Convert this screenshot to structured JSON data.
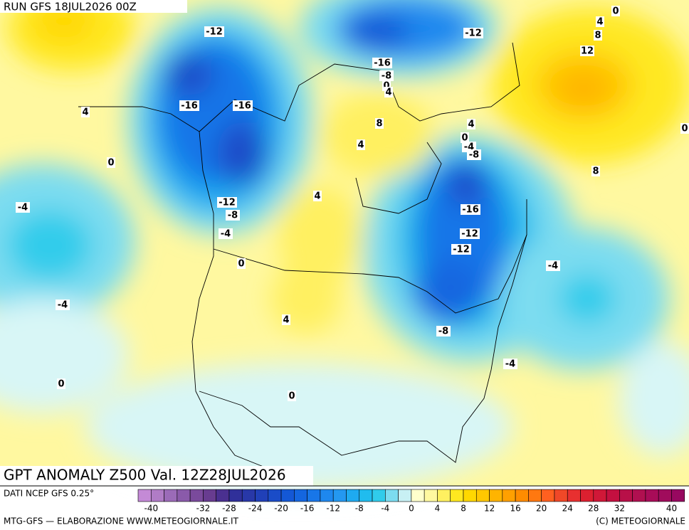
{
  "header": {
    "run": "RUN GFS 18JUL2026 00Z"
  },
  "map": {
    "title": "GPT ANOMALY Z500 Val. 12Z28JUL2026",
    "contour_labels": [
      "-12",
      "-16",
      "-16",
      "4",
      "0",
      "-4",
      "-12",
      "-8",
      "-4",
      "0",
      "4",
      "-4",
      "4",
      "0",
      "0",
      "-12",
      "4",
      "0",
      "8",
      "12",
      "-16",
      "-8",
      "0",
      "4",
      "8",
      "4",
      "4",
      "0",
      "-4",
      "-8",
      "8",
      "0",
      "-16",
      "-12",
      "-12",
      "-4",
      "-8",
      "-4"
    ]
  },
  "legend": {
    "source": "DATI NCEP GFS 0.25°",
    "ticks": [
      -40,
      -32,
      -28,
      -24,
      -20,
      -16,
      -12,
      -8,
      -4,
      0,
      4,
      8,
      12,
      16,
      20,
      24,
      28,
      32,
      40
    ],
    "colors": [
      "#c48ad6",
      "#b07cc6",
      "#9b6bb8",
      "#8a5aaa",
      "#7a4a9c",
      "#683c90",
      "#4a3090",
      "#30309a",
      "#2838a8",
      "#2040b8",
      "#1a4cc8",
      "#1458d6",
      "#1466e0",
      "#1876e8",
      "#1e88ee",
      "#2498f0",
      "#1eaaf0",
      "#20bcee",
      "#30cceb",
      "#7cdcf0",
      "#c8f0f4",
      "#ffffcc",
      "#fff8a0",
      "#fff060",
      "#ffe820",
      "#ffd800",
      "#ffc800",
      "#ffb400",
      "#ffa000",
      "#ff8c00",
      "#ff7810",
      "#ff6020",
      "#f04828",
      "#e83030",
      "#dc2030",
      "#d01838",
      "#c41040",
      "#b81048",
      "#b01050",
      "#a80c58",
      "#a00c5c",
      "#980860"
    ]
  },
  "footer": {
    "left": "MTG-GFS — ELABORAZIONE WWW.METEOGIORNALE.IT",
    "right": "(C) METEOGIORNALE"
  }
}
